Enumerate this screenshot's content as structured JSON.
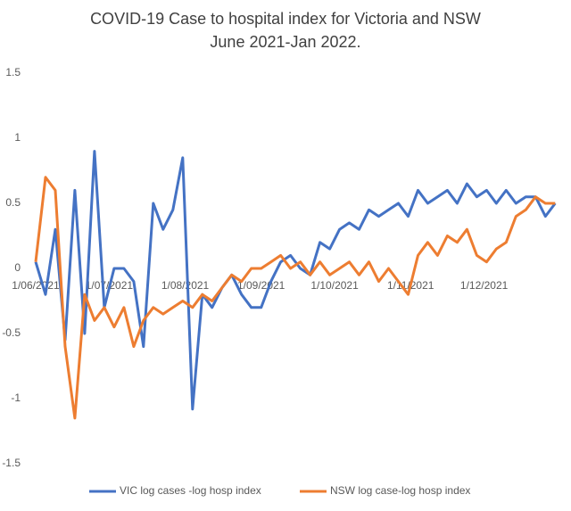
{
  "chart_data": {
    "type": "line",
    "title": "COVID-19 Case to hospital index for Victoria and NSW",
    "subtitle": "June 2021-Jan 2022.",
    "x": [
      "2021-06-01",
      "2021-06-05",
      "2021-06-09",
      "2021-06-13",
      "2021-06-17",
      "2021-06-21",
      "2021-06-25",
      "2021-06-29",
      "2021-07-03",
      "2021-07-07",
      "2021-07-11",
      "2021-07-15",
      "2021-07-19",
      "2021-07-23",
      "2021-07-27",
      "2021-07-31",
      "2021-08-04",
      "2021-08-08",
      "2021-08-12",
      "2021-08-16",
      "2021-08-20",
      "2021-08-24",
      "2021-08-28",
      "2021-09-01",
      "2021-09-05",
      "2021-09-09",
      "2021-09-13",
      "2021-09-17",
      "2021-09-21",
      "2021-09-25",
      "2021-09-29",
      "2021-10-03",
      "2021-10-07",
      "2021-10-11",
      "2021-10-15",
      "2021-10-19",
      "2021-10-23",
      "2021-10-27",
      "2021-10-31",
      "2021-11-04",
      "2021-11-08",
      "2021-11-12",
      "2021-11-16",
      "2021-11-20",
      "2021-11-24",
      "2021-11-28",
      "2021-12-02",
      "2021-12-06",
      "2021-12-10",
      "2021-12-14",
      "2021-12-18",
      "2021-12-22",
      "2021-12-26",
      "2021-12-30"
    ],
    "series": [
      {
        "name": "VIC log cases -log hosp index",
        "color": "#4472c4",
        "values": [
          0.05,
          -0.2,
          0.3,
          -0.55,
          0.6,
          -0.5,
          0.9,
          -0.3,
          0.0,
          0.0,
          -0.1,
          -0.6,
          0.5,
          0.3,
          0.45,
          0.85,
          -1.08,
          -0.2,
          -0.3,
          -0.15,
          -0.05,
          -0.2,
          -0.3,
          -0.3,
          -0.1,
          0.05,
          0.1,
          0.0,
          -0.05,
          0.2,
          0.15,
          0.3,
          0.35,
          0.3,
          0.45,
          0.4,
          0.45,
          0.5,
          0.4,
          0.6,
          0.5,
          0.55,
          0.6,
          0.5,
          0.65,
          0.55,
          0.6,
          0.5,
          0.6,
          0.5,
          0.55,
          0.55,
          0.4,
          0.5
        ]
      },
      {
        "name": "NSW log case-log hosp index",
        "color": "#ed7d31",
        "values": [
          0.05,
          0.7,
          0.6,
          -0.6,
          -1.15,
          -0.2,
          -0.4,
          -0.3,
          -0.45,
          -0.3,
          -0.6,
          -0.4,
          -0.3,
          -0.35,
          -0.3,
          -0.25,
          -0.3,
          -0.2,
          -0.25,
          -0.15,
          -0.05,
          -0.1,
          0.0,
          0.0,
          0.05,
          0.1,
          0.0,
          0.05,
          -0.05,
          0.05,
          -0.05,
          0.0,
          0.05,
          -0.05,
          0.05,
          -0.1,
          0.0,
          -0.1,
          -0.2,
          0.1,
          0.2,
          0.1,
          0.25,
          0.2,
          0.3,
          0.1,
          0.05,
          0.15,
          0.2,
          0.4,
          0.45,
          0.55,
          0.5,
          0.5
        ]
      }
    ],
    "xlim": [
      "2021-06-01",
      "2021-12-31"
    ],
    "xticks": [
      {
        "value": "2021-06-01",
        "label": "1/06/2021"
      },
      {
        "value": "2021-07-01",
        "label": "1/07/2021"
      },
      {
        "value": "2021-08-01",
        "label": "1/08/2021"
      },
      {
        "value": "2021-09-01",
        "label": "1/09/2021"
      },
      {
        "value": "2021-10-01",
        "label": "1/10/2021"
      },
      {
        "value": "2021-11-01",
        "label": "1/11/2021"
      },
      {
        "value": "2021-12-01",
        "label": "1/12/2021"
      }
    ],
    "ylim": [
      -1.5,
      1.5
    ],
    "yticks": [
      -1.5,
      -1,
      -0.5,
      0,
      0.5,
      1,
      1.5
    ],
    "grid": false,
    "legend": "bottom"
  }
}
